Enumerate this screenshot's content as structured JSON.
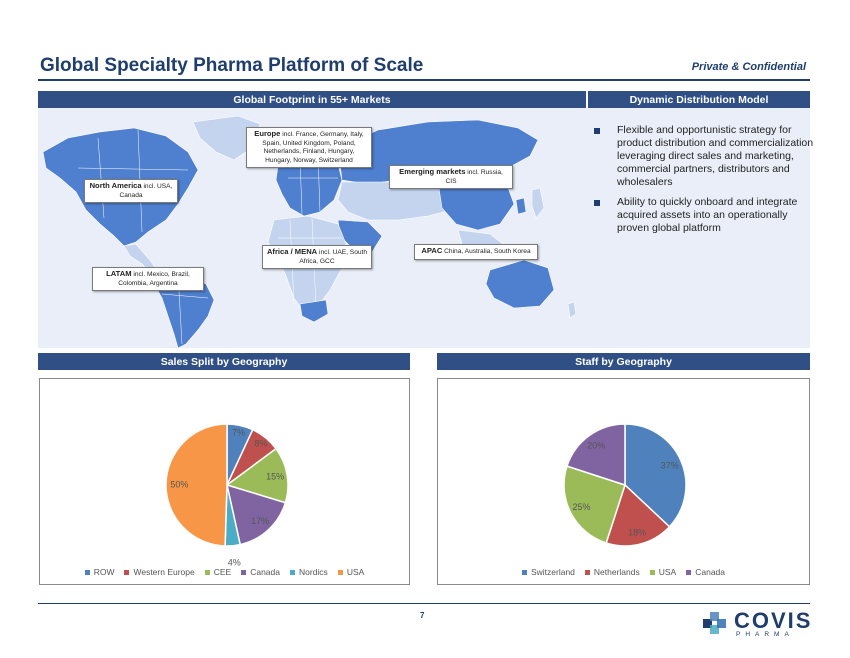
{
  "header": {
    "title": "Global Specialty Pharma Platform of Scale",
    "confidential": "Private & Confidential"
  },
  "sections": {
    "footprint": "Global Footprint in 55+ Markets",
    "distribution": "Dynamic Distribution Model",
    "sales": "Sales Split by Geography",
    "staff": "Staff by Geography"
  },
  "callouts": {
    "europe": {
      "name": "Europe",
      "detail": "incl. France, Germany, Italy, Spain, United Kingdom, Poland, Netherlands, Finland, Hungary, Hungary, Norway, Switzerland"
    },
    "north_america": {
      "name": "North America",
      "detail": "incl. USA, Canada"
    },
    "emerging": {
      "name": "Emerging markets",
      "detail": "incl. Russia, CIS"
    },
    "africa": {
      "name": "Africa / MENA",
      "detail": "incl. UAE, South Africa, GCC"
    },
    "apac": {
      "name": "APAC",
      "detail": "China, Australia, South Korea"
    },
    "latam": {
      "name": "LATAM",
      "detail": "incl. Mexico, Brazil, Colombia, Argentina"
    }
  },
  "bullets": [
    "Flexible and opportunistic strategy for product distribution and commercialization leveraging direct sales and marketing, commercial partners, distributors and wholesalers",
    "Ability to quickly onboard and integrate acquired assets into an operationally proven global platform"
  ],
  "chart_data": [
    {
      "type": "pie",
      "title": "Sales Split by Geography",
      "categories": [
        "ROW",
        "Western Europe",
        "CEE",
        "Canada",
        "Nordics",
        "USA"
      ],
      "values": [
        7,
        8,
        15,
        17,
        4,
        50
      ],
      "labels": [
        "7%",
        "8%",
        "15%",
        "17%",
        "4%",
        "50%"
      ],
      "colors": [
        "#4f81bd",
        "#c0504d",
        "#9bbb59",
        "#8064a2",
        "#4bacc6",
        "#f79646"
      ],
      "legend": "bottom"
    },
    {
      "type": "pie",
      "title": "Staff by Geography",
      "categories": [
        "Switzerland",
        "Netherlands",
        "USA",
        "Canada"
      ],
      "values": [
        37,
        18,
        25,
        20
      ],
      "labels": [
        "37%",
        "18%",
        "25%",
        "20%"
      ],
      "colors": [
        "#4f81bd",
        "#c0504d",
        "#9bbb59",
        "#8064a2"
      ],
      "legend": "bottom"
    }
  ],
  "footer": {
    "page": "7",
    "logo_name": "COVIS",
    "logo_sub": "PHARMA"
  },
  "colors": {
    "brand": "#1f3e6e",
    "bar": "#2f4f85",
    "map_active": "#4f7fcf",
    "map_inactive": "#c4d4ee"
  }
}
